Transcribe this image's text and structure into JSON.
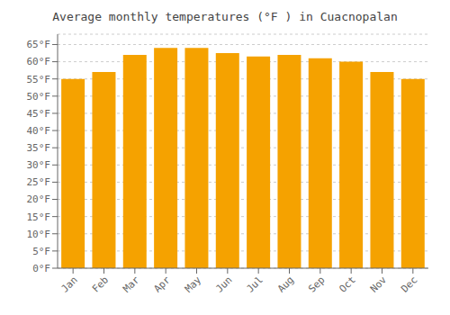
{
  "chart_data": {
    "type": "bar",
    "title": "Average monthly temperatures (°F ) in Cuacnopalan",
    "categories": [
      "Jan",
      "Feb",
      "Mar",
      "Apr",
      "May",
      "Jun",
      "Jul",
      "Aug",
      "Sep",
      "Oct",
      "Nov",
      "Dec"
    ],
    "values": [
      55,
      57,
      62,
      64,
      64,
      62.5,
      61.5,
      62,
      61,
      60,
      57,
      55
    ],
    "color": "#F5A200",
    "ylim": [
      0,
      68
    ],
    "yticks": [
      {
        "value": 0,
        "label": "0°F"
      },
      {
        "value": 5,
        "label": "5°F"
      },
      {
        "value": 10,
        "label": "10°F"
      },
      {
        "value": 15,
        "label": "15°F"
      },
      {
        "value": 20,
        "label": "20°F"
      },
      {
        "value": 25,
        "label": "25°F"
      },
      {
        "value": 30,
        "label": "30°F"
      },
      {
        "value": 35,
        "label": "35°F"
      },
      {
        "value": 40,
        "label": "40°F"
      },
      {
        "value": 45,
        "label": "45°F"
      },
      {
        "value": 50,
        "label": "50°F"
      },
      {
        "value": 55,
        "label": "55°F"
      },
      {
        "value": 60,
        "label": "60°F"
      },
      {
        "value": 65,
        "label": "65°F"
      }
    ],
    "grid": true
  }
}
